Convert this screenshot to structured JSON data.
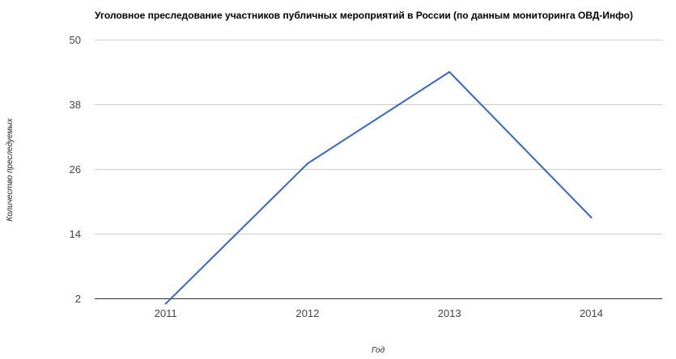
{
  "chart_data": {
    "type": "line",
    "title": "Уголовное преследование участников публичных мероприятий в России (по данным мониторинга ОВД-Инфо)",
    "xlabel": "Год",
    "ylabel": "Количество преследуемых",
    "categories": [
      "2011",
      "2012",
      "2013",
      "2014"
    ],
    "series": [
      {
        "values": [
          1,
          27,
          44,
          17
        ]
      }
    ],
    "ylim": [
      2,
      50
    ],
    "yticks": [
      "2",
      "14",
      "26",
      "38",
      "50"
    ],
    "grid": true,
    "legend": "none",
    "colors": {
      "series": "#3366cc",
      "grid": "#cccccc",
      "baseline": "#333333"
    }
  }
}
